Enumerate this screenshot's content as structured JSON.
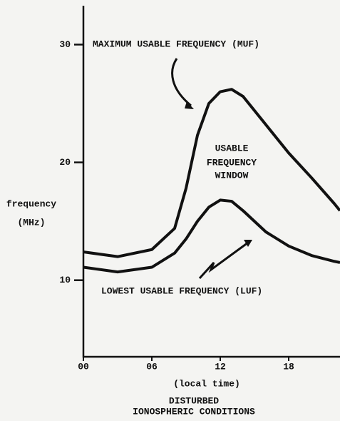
{
  "chart_data": {
    "type": "line",
    "ylabel": [
      "frequency",
      "(MHz)"
    ],
    "xlabel": "(local time)",
    "caption": [
      "DISTURBED",
      "IONOSPHERIC CONDITIONS"
    ],
    "annotations": [
      "MAXIMUM USABLE FREQUENCY (MUF)",
      "USABLE",
      "FREQUENCY",
      "WINDOW",
      "LOWEST USABLE FREQUENCY (LUF)"
    ],
    "x": [
      0,
      3,
      6,
      8,
      9,
      10,
      11,
      12,
      13,
      14,
      16,
      18,
      20,
      22,
      22.5
    ],
    "series": [
      {
        "color": "#111111",
        "values": [
          12.4,
          12.0,
          12.6,
          14.4,
          17.8,
          22.3,
          25.0,
          26.0,
          26.2,
          25.6,
          23.2,
          20.8,
          18.7,
          16.5,
          15.9
        ]
      },
      {
        "color": "#111111",
        "values": [
          11.1,
          10.7,
          11.1,
          12.3,
          13.5,
          15.0,
          16.2,
          16.8,
          16.7,
          15.9,
          14.1,
          12.9,
          12.1,
          11.6,
          11.5
        ]
      }
    ],
    "xlim": [
      0,
      22.5
    ],
    "xticks": [
      {
        "value": 0,
        "label": "00"
      },
      {
        "value": 6,
        "label": "06"
      },
      12,
      18
    ],
    "ylim": [
      3.5,
      33.3
    ],
    "yticks": [
      10,
      20,
      30
    ]
  }
}
